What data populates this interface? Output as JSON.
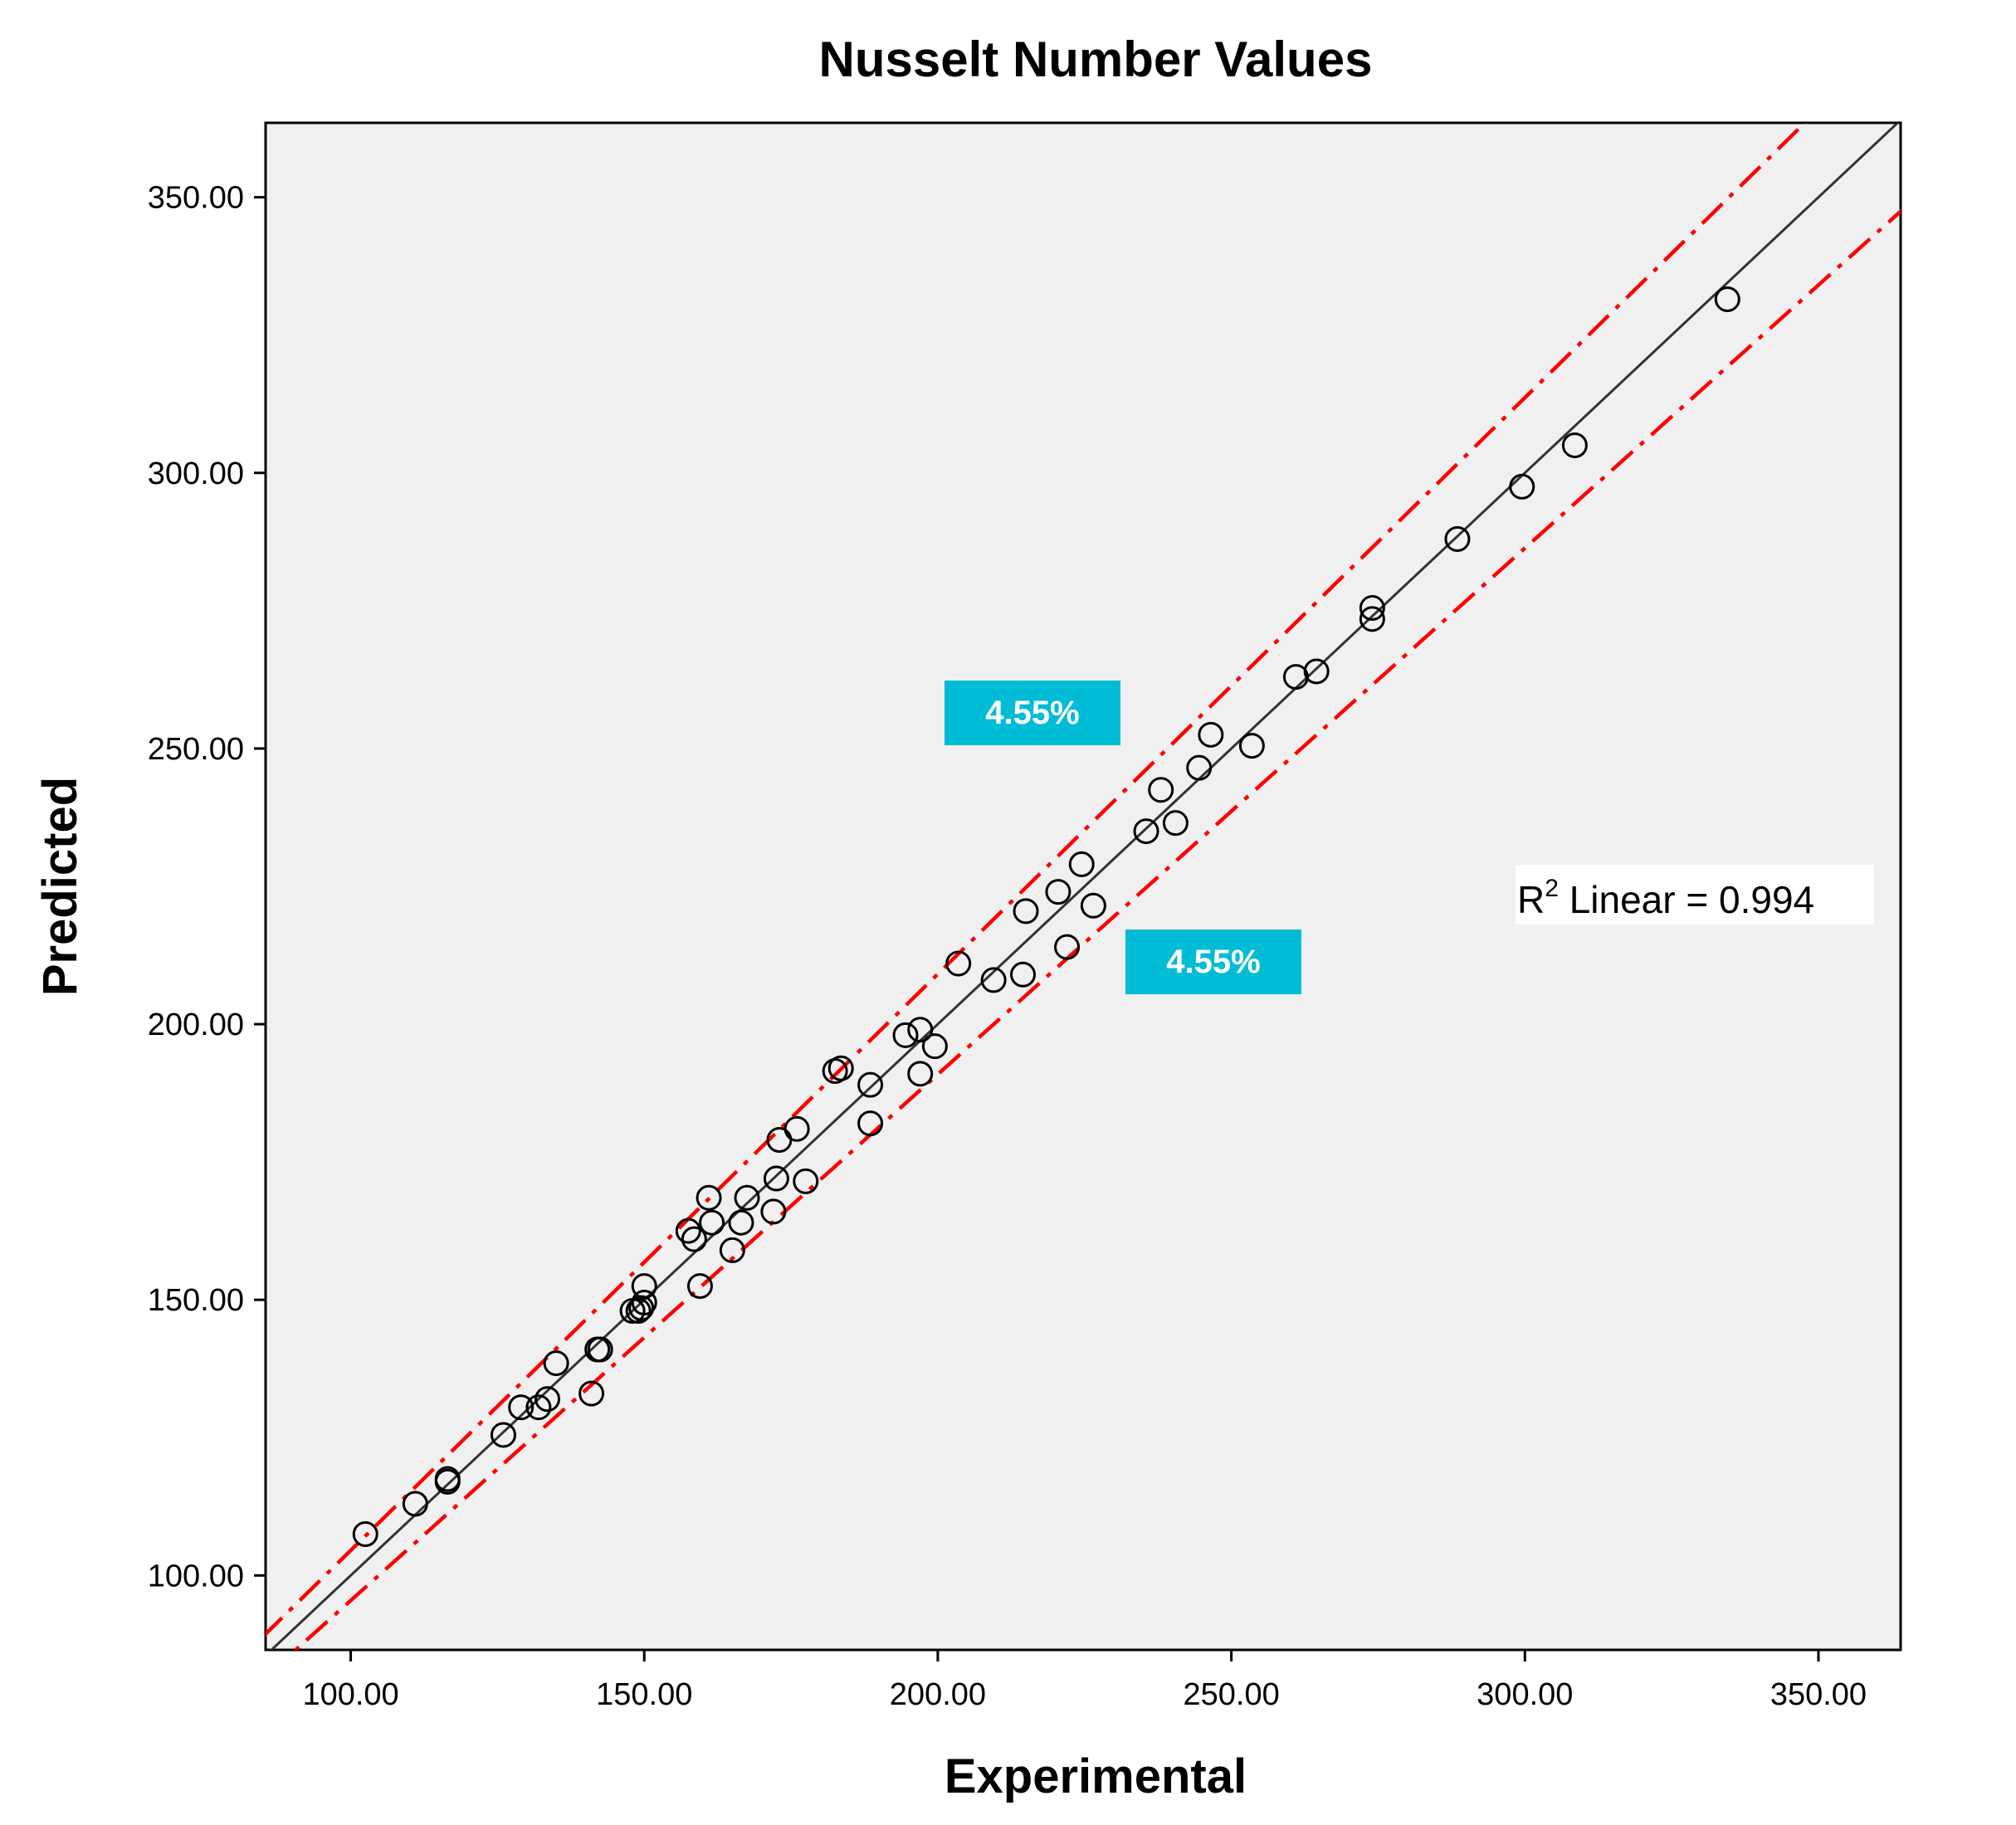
{
  "chart_data": {
    "type": "scatter",
    "title": "Nusselt Number Values",
    "xlabel": "Experimental",
    "ylabel": "Predicted",
    "xlim": [
      85.5,
      364.0
    ],
    "ylim": [
      86.5,
      363.5
    ],
    "xticks": [
      100,
      150,
      200,
      250,
      300,
      350
    ],
    "yticks": [
      100,
      150,
      200,
      250,
      300,
      350
    ],
    "xtick_labels": [
      "100.00",
      "150.00",
      "200.00",
      "250.00",
      "300.00",
      "350.00"
    ],
    "ytick_labels": [
      "100.00",
      "150.00",
      "200.00",
      "250.00",
      "300.00",
      "350.00"
    ],
    "grid": false,
    "background_color": "#f0f0f0",
    "marker": "open-circle",
    "marker_color": "#000000",
    "points": [
      [
        102.5,
        107.5
      ],
      [
        111.0,
        113.0
      ],
      [
        116.5,
        117.0
      ],
      [
        116.5,
        117.5
      ],
      [
        126.0,
        125.5
      ],
      [
        129.0,
        130.5
      ],
      [
        132.0,
        130.5
      ],
      [
        133.5,
        132.0
      ],
      [
        135.0,
        138.5
      ],
      [
        141.0,
        133.0
      ],
      [
        142.0,
        141.0
      ],
      [
        142.5,
        141.0
      ],
      [
        148.0,
        148.0
      ],
      [
        149.0,
        148.0
      ],
      [
        149.5,
        148.5
      ],
      [
        150.0,
        149.5
      ],
      [
        150.0,
        152.5
      ],
      [
        157.5,
        162.5
      ],
      [
        158.5,
        161.0
      ],
      [
        159.5,
        152.5
      ],
      [
        161.0,
        168.5
      ],
      [
        161.5,
        164.0
      ],
      [
        165.0,
        159.0
      ],
      [
        166.5,
        164.0
      ],
      [
        167.5,
        168.5
      ],
      [
        172.0,
        166.0
      ],
      [
        172.5,
        172.0
      ],
      [
        173.0,
        179.0
      ],
      [
        176.0,
        181.0
      ],
      [
        177.5,
        171.5
      ],
      [
        182.5,
        191.5
      ],
      [
        183.5,
        192.0
      ],
      [
        188.5,
        189.0
      ],
      [
        188.5,
        182.0
      ],
      [
        194.5,
        198.0
      ],
      [
        197.0,
        199.0
      ],
      [
        197.0,
        191.0
      ],
      [
        199.5,
        196.0
      ],
      [
        203.5,
        211.0
      ],
      [
        209.5,
        208.0
      ],
      [
        214.5,
        209.0
      ],
      [
        215.0,
        220.5
      ],
      [
        220.5,
        224.0
      ],
      [
        222.0,
        214.0
      ],
      [
        224.5,
        229.0
      ],
      [
        226.5,
        221.5
      ],
      [
        235.5,
        235.0
      ],
      [
        238.0,
        242.5
      ],
      [
        240.5,
        236.5
      ],
      [
        244.5,
        246.5
      ],
      [
        246.5,
        252.5
      ],
      [
        253.5,
        250.5
      ],
      [
        261.0,
        263.0
      ],
      [
        264.5,
        264.0
      ],
      [
        274.0,
        275.5
      ],
      [
        274.0,
        273.5
      ],
      [
        288.5,
        288.0
      ],
      [
        299.5,
        297.5
      ],
      [
        308.5,
        305.0
      ],
      [
        334.5,
        331.5
      ]
    ],
    "fit_line": {
      "name": "Linear",
      "slope": 1.0,
      "intercept": 0.0,
      "color": "#333333"
    },
    "bounds": [
      {
        "label": "4.55%",
        "factor": 1.0455,
        "color": "#ff0000",
        "style": "dash-dot"
      },
      {
        "label": "4.55%",
        "factor": 0.9545,
        "color": "#ff0000",
        "style": "dash-dot"
      }
    ],
    "annotations": {
      "upper_badge": "4.55%",
      "lower_badge": "4.55%",
      "badge_color": "#00bcd4",
      "r2_prefix": "R",
      "r2_sup": "2",
      "r2_text": " Linear = 0.994"
    }
  }
}
